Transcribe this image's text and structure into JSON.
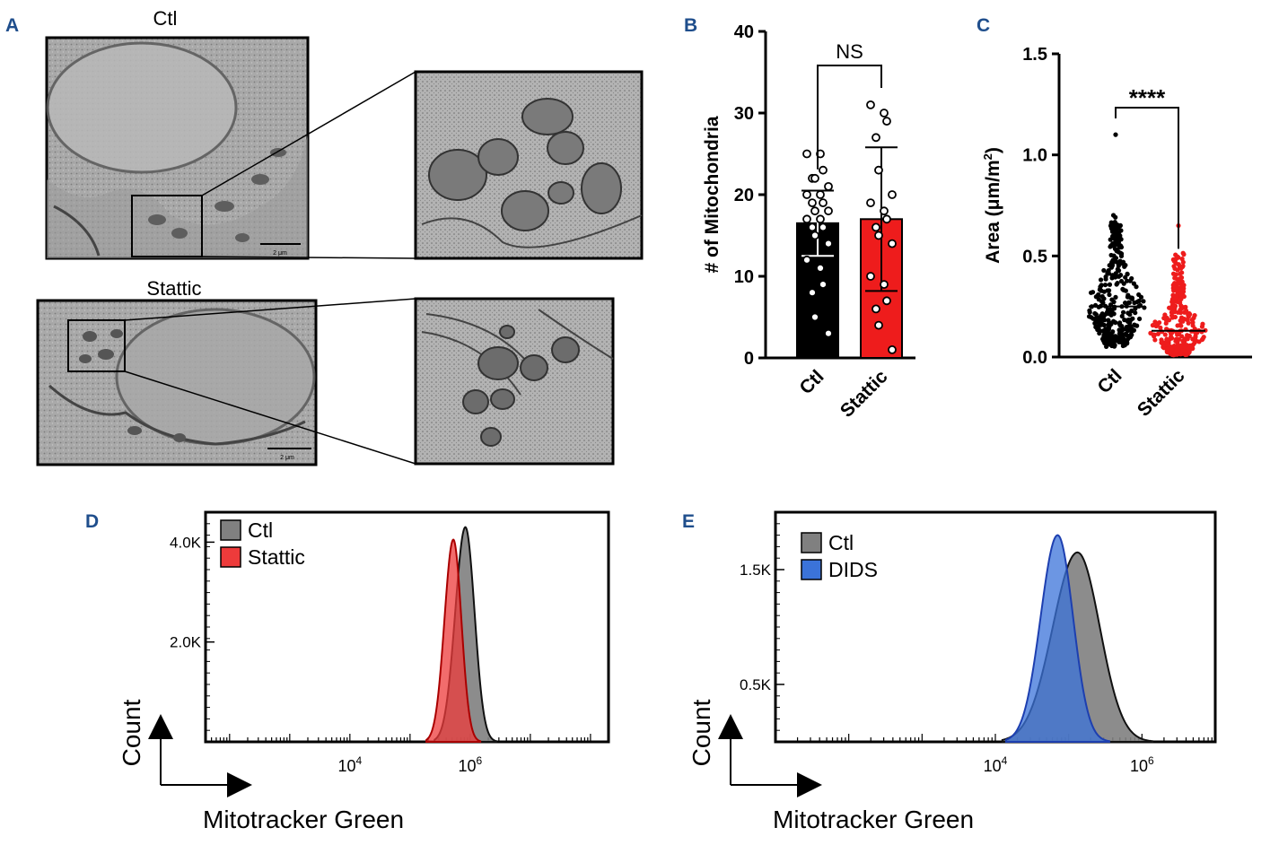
{
  "colors": {
    "panel_letter": "#1f4e8c",
    "ctl_bar": "#000000",
    "stattic_bar": "#ee1c1c",
    "stattic_dots": "#ee1c1c",
    "hist_ctl": "#808080",
    "hist_stattic": "#ee3b3b",
    "hist_dids": "#3b73d9"
  },
  "panel_a": {
    "letter": "A",
    "top_title": "Ctl",
    "bottom_title": "Stattic",
    "scale_bar_top": "2 μm",
    "scale_bar_bottom": "2 μm"
  },
  "chart_data": [
    {
      "panel": "B",
      "type": "bar",
      "ylabel": "# of Mitochondria",
      "categories": [
        "Ctl",
        "Stattic"
      ],
      "values": [
        16.5,
        17
      ],
      "errors": [
        4,
        8.8
      ],
      "ylim": [
        0,
        40
      ],
      "yticks": [
        0,
        10,
        20,
        30,
        40
      ],
      "significance": "NS",
      "points": [
        [
          25,
          25,
          23,
          22,
          22,
          21,
          20,
          20,
          19,
          19,
          18,
          18,
          17,
          17,
          16,
          16,
          15,
          14,
          12,
          11,
          9,
          8,
          5,
          3
        ],
        [
          31,
          30,
          29,
          27,
          23,
          20,
          19,
          18,
          17,
          16,
          15,
          14,
          10,
          9,
          7,
          6,
          4,
          1
        ]
      ]
    },
    {
      "panel": "C",
      "type": "scatter",
      "ylabel_main": "Area (μm/m",
      "ylabel_sup": "2",
      "ylabel_end": ")",
      "categories": [
        "Ctl",
        "Stattic"
      ],
      "medians": [
        0.25,
        0.13
      ],
      "ylim": [
        0,
        1.5
      ],
      "yticks": [
        "0.0",
        "0.5",
        "1.0",
        "1.5"
      ],
      "significance": "****",
      "n_points": [
        360,
        340
      ],
      "max_values": [
        1.1,
        0.65
      ]
    },
    {
      "panel": "D",
      "type": "area",
      "xlabel": "Mitotracker Green",
      "ylabel": "Count",
      "xtick_base": "10",
      "xticks": [
        {
          "exp": "4",
          "log": 4
        },
        {
          "exp": "6",
          "log": 6
        }
      ],
      "xlim_log": [
        1.6,
        8.3
      ],
      "yticks": [
        {
          "label": "2.0K",
          "value": 2000
        },
        {
          "label": "4.0K",
          "value": 4000
        }
      ],
      "ylim": [
        0,
        4600
      ],
      "series": [
        {
          "name": "Ctl",
          "peak_log": 5.92,
          "peak_count": 4300,
          "width": 0.16
        },
        {
          "name": "Stattic",
          "peak_log": 5.72,
          "peak_count": 4050,
          "width": 0.14
        }
      ]
    },
    {
      "panel": "E",
      "type": "area",
      "xlabel": "Mitotracker Green",
      "ylabel": "Count",
      "xtick_base": "10",
      "xticks": [
        {
          "exp": "4",
          "log": 4
        },
        {
          "exp": "6",
          "log": 6
        }
      ],
      "xlim_log": [
        1.0,
        7.0
      ],
      "yticks": [
        {
          "label": "0.5K",
          "value": 500
        },
        {
          "label": "1.5K",
          "value": 1500
        }
      ],
      "ylim": [
        0,
        2000
      ],
      "series": [
        {
          "name": "Ctl",
          "peak_log": 5.12,
          "peak_count": 1650,
          "width": 0.32
        },
        {
          "name": "DIDS",
          "peak_log": 4.85,
          "peak_count": 1800,
          "width": 0.22
        }
      ]
    }
  ],
  "letters": {
    "b": "B",
    "c": "C",
    "d": "D",
    "e": "E"
  }
}
